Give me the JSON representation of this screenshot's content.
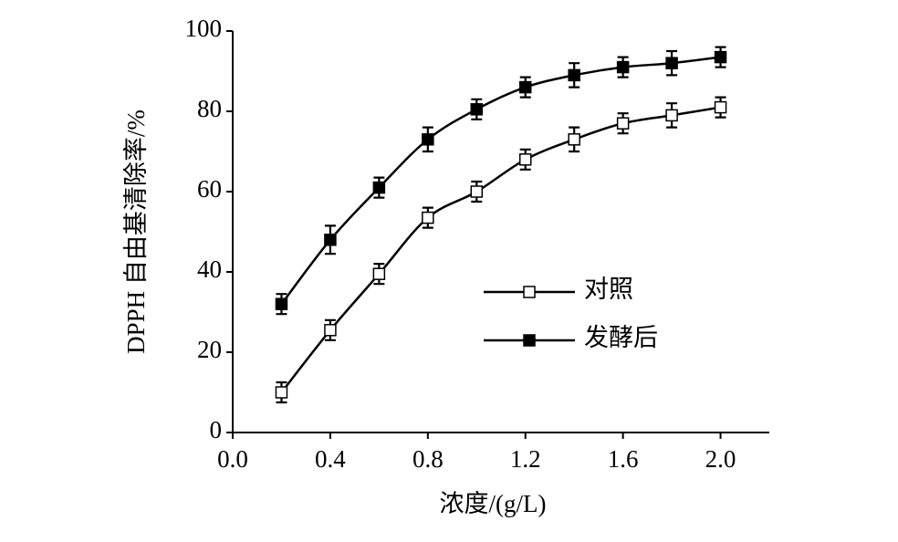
{
  "chart_data": {
    "type": "line",
    "x_label": "浓度/(g/L)",
    "y_label": "DPPH 自由基清除率/%",
    "x": [
      0.2,
      0.4,
      0.6,
      0.8,
      1.0,
      1.2,
      1.4,
      1.6,
      1.8,
      2.0
    ],
    "series": [
      {
        "name": "对照",
        "color": "#000000",
        "marker_fill": "#ffffff",
        "values": [
          10,
          25.5,
          39.5,
          53.5,
          60,
          68,
          73,
          77,
          79,
          81
        ],
        "errors": [
          2.5,
          2.5,
          2.5,
          2.5,
          2.5,
          2.5,
          3,
          2.5,
          3,
          2.5
        ]
      },
      {
        "name": "发酵后",
        "color": "#000000",
        "marker_fill": "#000000",
        "values": [
          32,
          48,
          61,
          73,
          80.5,
          86,
          89,
          91,
          92,
          93.5
        ],
        "errors": [
          2.5,
          3.5,
          2.5,
          3,
          2.5,
          2.5,
          3,
          2.5,
          3,
          2.5
        ]
      }
    ],
    "xlim": [
      0,
      2.2
    ],
    "ylim": [
      0,
      100
    ],
    "xticks": [
      {
        "value": 0,
        "label": "0.0"
      },
      0.4,
      0.8,
      1.2,
      1.6,
      {
        "value": 2,
        "label": "2.0"
      }
    ],
    "yticks": [
      0,
      20,
      40,
      60,
      80,
      100
    ],
    "grid": false,
    "legend": "right"
  }
}
